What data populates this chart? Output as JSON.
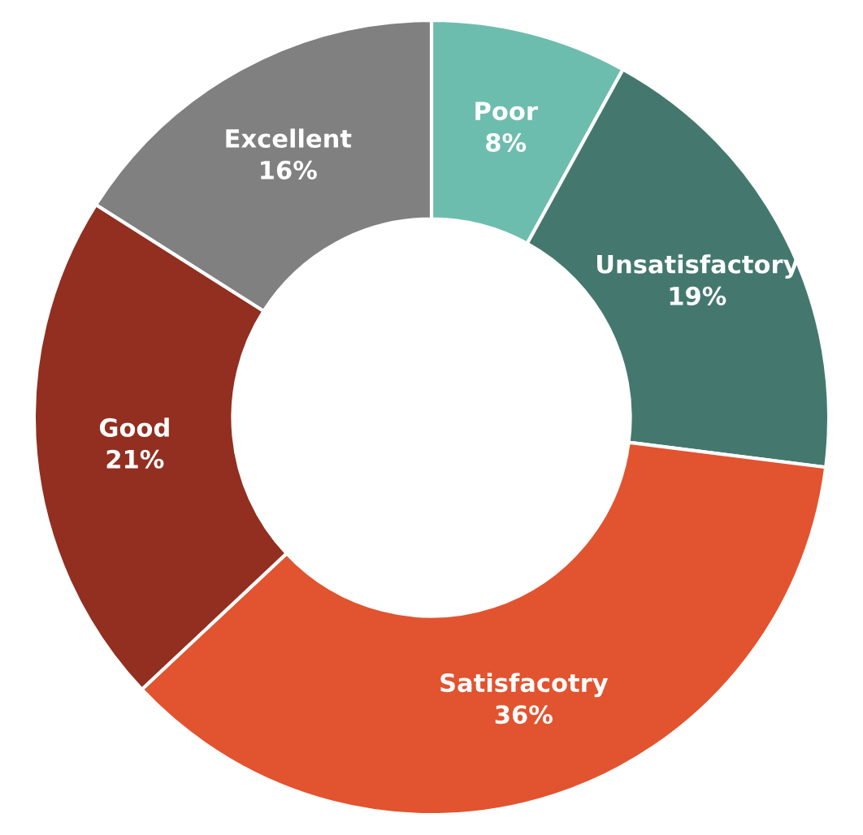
{
  "chart_data": {
    "type": "donut",
    "categories": [
      "Poor",
      "Unsatisfactory",
      "Satisfacotry",
      "Good",
      "Excellent"
    ],
    "values": [
      8,
      19,
      36,
      21,
      16
    ],
    "value_labels": [
      "8%",
      "19%",
      "36%",
      "21%",
      "16%"
    ],
    "colors": [
      "#6dbdae",
      "#44786f",
      "#e2532f",
      "#922f20",
      "#808080"
    ]
  }
}
